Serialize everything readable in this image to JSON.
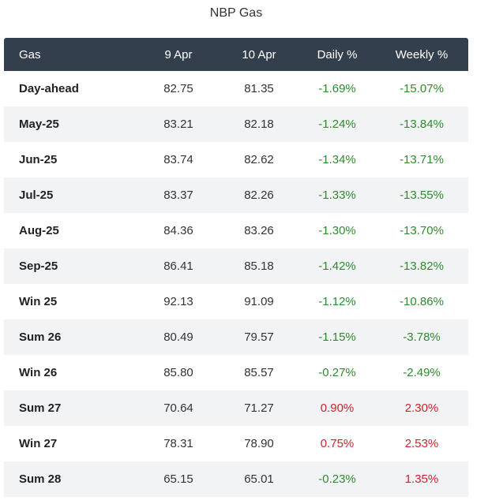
{
  "title": "NBP Gas",
  "columns": {
    "name": "Gas",
    "prev": "9 Apr",
    "curr": "10 Apr",
    "daily": "Daily %",
    "weekly": "Weekly %"
  },
  "colors": {
    "header_bg": "#343f4d",
    "negative": "#2e8b2e",
    "positive": "#d0222b",
    "stripe": "#f2f3f5"
  },
  "rows": [
    {
      "name": "Day-ahead",
      "prev": "82.75",
      "curr": "81.35",
      "daily": "-1.69%",
      "weekly": "-15.07%"
    },
    {
      "name": "May-25",
      "prev": "83.21",
      "curr": "82.18",
      "daily": "-1.24%",
      "weekly": "-13.84%"
    },
    {
      "name": "Jun-25",
      "prev": "83.74",
      "curr": "82.62",
      "daily": "-1.34%",
      "weekly": "-13.71%"
    },
    {
      "name": "Jul-25",
      "prev": "83.37",
      "curr": "82.26",
      "daily": "-1.33%",
      "weekly": "-13.55%"
    },
    {
      "name": "Aug-25",
      "prev": "84.36",
      "curr": "83.26",
      "daily": "-1.30%",
      "weekly": "-13.70%"
    },
    {
      "name": "Sep-25",
      "prev": "86.41",
      "curr": "85.18",
      "daily": "-1.42%",
      "weekly": "-13.82%"
    },
    {
      "name": "Win 25",
      "prev": "92.13",
      "curr": "91.09",
      "daily": "-1.12%",
      "weekly": "-10.86%"
    },
    {
      "name": "Sum 26",
      "prev": "80.49",
      "curr": "79.57",
      "daily": "-1.15%",
      "weekly": "-3.78%"
    },
    {
      "name": "Win 26",
      "prev": "85.80",
      "curr": "85.57",
      "daily": "-0.27%",
      "weekly": "-2.49%"
    },
    {
      "name": "Sum 27",
      "prev": "70.64",
      "curr": "71.27",
      "daily": "0.90%",
      "weekly": "2.30%"
    },
    {
      "name": "Win 27",
      "prev": "78.31",
      "curr": "78.90",
      "daily": "0.75%",
      "weekly": "2.53%"
    },
    {
      "name": "Sum 28",
      "prev": "65.15",
      "curr": "65.01",
      "daily": "-0.23%",
      "weekly": "1.35%"
    }
  ]
}
